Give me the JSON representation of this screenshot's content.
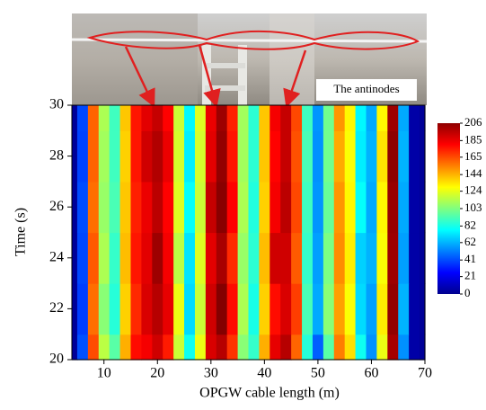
{
  "chart_data": {
    "type": "heatmap",
    "xlabel": "OPGW cable length (m)",
    "ylabel": "Time (s)",
    "annotation": "The antinodes",
    "colormap": "jet",
    "x": [
      4,
      6,
      8,
      10,
      12,
      14,
      16,
      18,
      20,
      22,
      24,
      26,
      28,
      30,
      32,
      34,
      36,
      38,
      40,
      42,
      44,
      46,
      48,
      50,
      52,
      54,
      56,
      58,
      60,
      62,
      64,
      66,
      68,
      70
    ],
    "y": [
      20,
      22,
      24,
      26,
      28,
      30
    ],
    "z": [
      [
        5,
        42,
        165,
        115,
        95,
        145,
        178,
        182,
        190,
        175,
        118,
        80,
        125,
        188,
        195,
        170,
        105,
        88,
        145,
        185,
        195,
        160,
        85,
        45,
        95,
        155,
        135,
        80,
        55,
        125,
        198,
        55,
        8,
        5
      ],
      [
        5,
        38,
        158,
        105,
        85,
        138,
        172,
        188,
        195,
        185,
        125,
        70,
        118,
        190,
        205,
        178,
        112,
        82,
        138,
        178,
        188,
        168,
        92,
        60,
        105,
        148,
        128,
        70,
        58,
        132,
        202,
        62,
        8,
        5
      ],
      [
        5,
        40,
        162,
        112,
        88,
        142,
        176,
        186,
        200,
        182,
        115,
        72,
        122,
        186,
        198,
        172,
        108,
        86,
        142,
        190,
        190,
        162,
        88,
        58,
        102,
        152,
        132,
        68,
        62,
        128,
        200,
        58,
        8,
        5
      ],
      [
        5,
        41,
        158,
        108,
        92,
        140,
        174,
        184,
        194,
        180,
        122,
        78,
        118,
        192,
        204,
        180,
        112,
        84,
        138,
        182,
        194,
        166,
        90,
        56,
        98,
        150,
        130,
        78,
        60,
        130,
        201,
        60,
        8,
        5
      ],
      [
        5,
        39,
        160,
        110,
        90,
        138,
        176,
        190,
        196,
        184,
        120,
        74,
        120,
        186,
        202,
        176,
        110,
        86,
        140,
        180,
        192,
        164,
        92,
        55,
        100,
        146,
        128,
        74,
        62,
        134,
        203,
        62,
        8,
        5
      ],
      [
        5,
        40,
        160,
        112,
        90,
        140,
        176,
        186,
        192,
        180,
        118,
        76,
        122,
        184,
        200,
        174,
        110,
        86,
        140,
        182,
        192,
        166,
        90,
        56,
        100,
        150,
        130,
        76,
        60,
        130,
        200,
        60,
        8,
        5
      ]
    ],
    "xlim": [
      4,
      70
    ],
    "ylim": [
      20,
      30
    ],
    "xticks": [
      10,
      20,
      30,
      40,
      50,
      60,
      70
    ],
    "yticks": [
      20,
      22,
      24,
      26,
      28,
      30
    ],
    "clim": [
      0,
      206
    ],
    "cticks": [
      206,
      185,
      165,
      144,
      124,
      103,
      82,
      62,
      41,
      21,
      0
    ]
  }
}
